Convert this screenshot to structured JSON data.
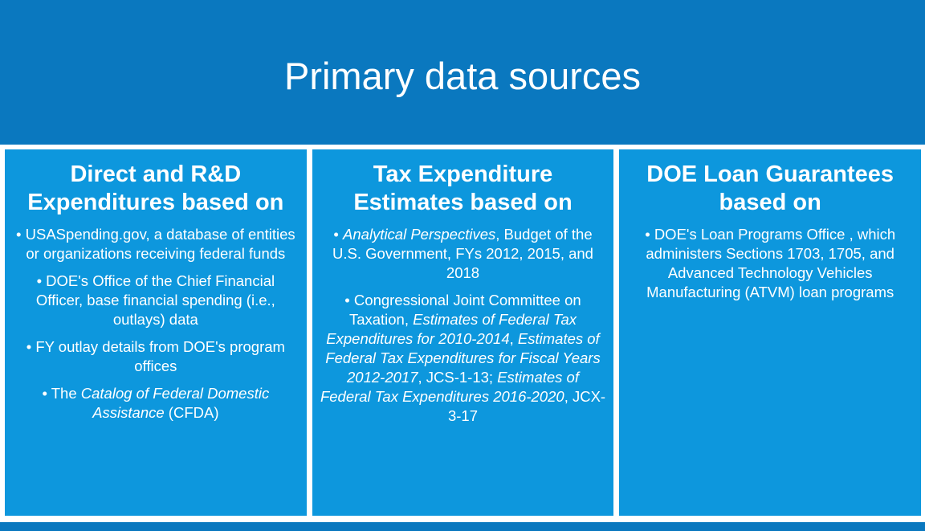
{
  "header": {
    "title": "Primary data sources"
  },
  "columns": [
    {
      "heading": "Direct and R&D Expenditures based on",
      "items": [
        [
          {
            "text": "• USASpending.gov, a database of entities or organizations receiving federal funds",
            "italic": false
          }
        ],
        [
          {
            "text": "• DOE's Office of the Chief Financial Officer, base financial spending (i.e., outlays) data",
            "italic": false
          }
        ],
        [
          {
            "text": "• FY outlay details from DOE's program offices",
            "italic": false
          }
        ],
        [
          {
            "text": "• The ",
            "italic": false
          },
          {
            "text": "Catalog of Federal Domestic Assistance",
            "italic": true
          },
          {
            "text": " (CFDA)",
            "italic": false
          }
        ]
      ]
    },
    {
      "heading": "Tax Expenditure Estimates based on",
      "items": [
        [
          {
            "text": "• ",
            "italic": false
          },
          {
            "text": "Analytical Perspectives",
            "italic": true
          },
          {
            "text": ", Budget of the U.S. Government, FYs 2012, 2015, and 2018",
            "italic": false
          }
        ],
        [
          {
            "text": "• Congressional Joint Committee on Taxation, ",
            "italic": false
          },
          {
            "text": "Estimates of Federal Tax Expenditures for 2010-2014",
            "italic": true
          },
          {
            "text": ", ",
            "italic": false
          },
          {
            "text": "Estimates of Federal Tax Expenditures for Fiscal Years 2012-2017",
            "italic": true
          },
          {
            "text": ", JCS-1-13; ",
            "italic": false
          },
          {
            "text": "Estimates of Federal Tax Expenditures 2016-2020",
            "italic": true
          },
          {
            "text": ", JCX-3-17",
            "italic": false
          }
        ]
      ]
    },
    {
      "heading": "DOE Loan Guarantees based on",
      "items": [
        [
          {
            "text": "• DOE's Loan Programs Office , which administers Sections 1703, 1705, and Advanced Technology Vehicles Manufacturing (ATVM) loan programs",
            "italic": false
          }
        ]
      ]
    }
  ]
}
